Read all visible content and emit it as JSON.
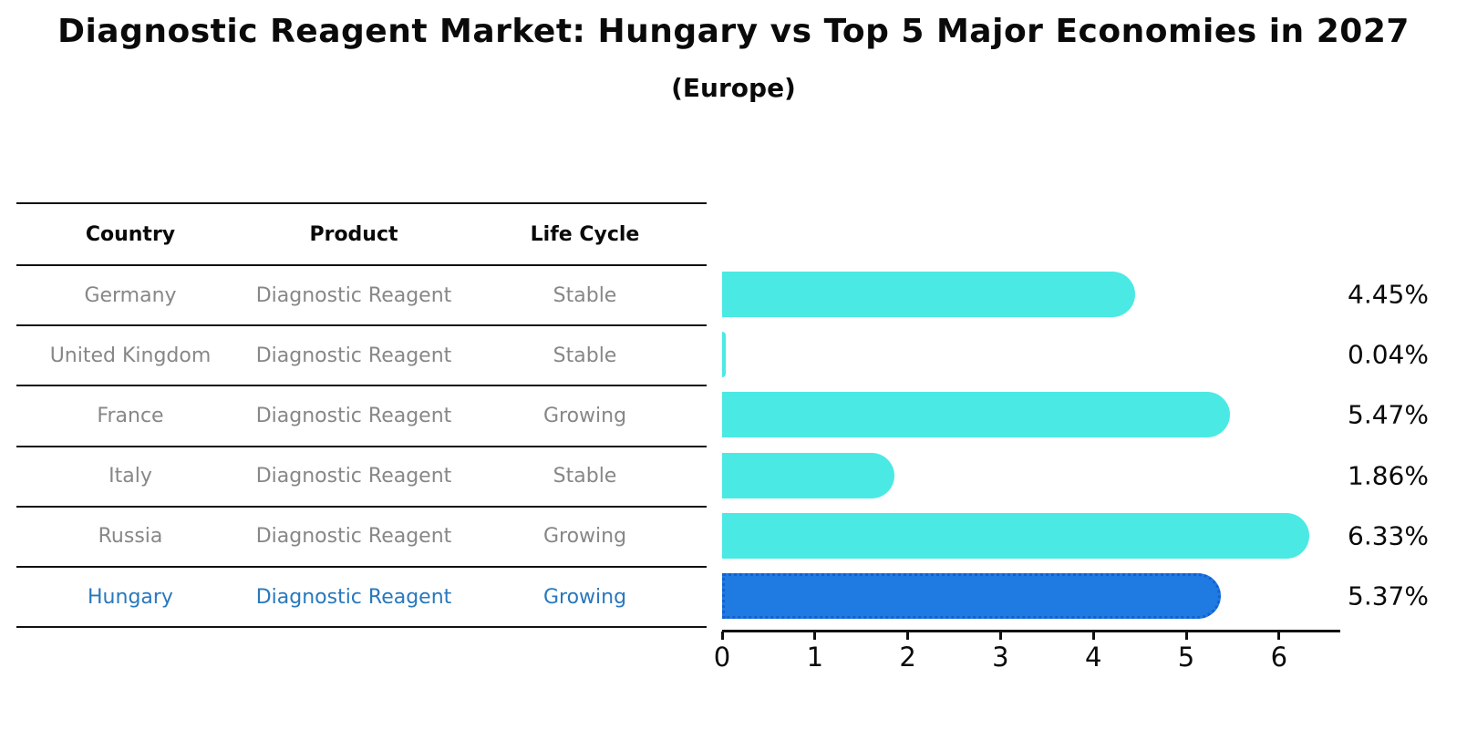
{
  "title": "Diagnostic Reagent Market: Hungary vs Top 5 Major Economies in 2027",
  "subtitle": "(Europe)",
  "table": {
    "columns": [
      "Country",
      "Product",
      "Life Cycle"
    ],
    "rows": [
      {
        "country": "Germany",
        "product": "Diagnostic Reagent",
        "life_cycle": "Stable",
        "highlight": false
      },
      {
        "country": "United Kingdom",
        "product": "Diagnostic Reagent",
        "life_cycle": "Stable",
        "highlight": false
      },
      {
        "country": "France",
        "product": "Diagnostic Reagent",
        "life_cycle": "Growing",
        "highlight": false
      },
      {
        "country": "Italy",
        "product": "Diagnostic Reagent",
        "life_cycle": "Stable",
        "highlight": false
      },
      {
        "country": "Russia",
        "product": "Diagnostic Reagent",
        "life_cycle": "Growing",
        "highlight": false
      },
      {
        "country": "Hungary",
        "product": "Diagnostic Reagent",
        "life_cycle": "Growing",
        "highlight": true
      }
    ]
  },
  "chart_data": {
    "type": "bar",
    "orientation": "horizontal",
    "title": "Diagnostic Reagent Market: Hungary vs Top 5 Major Economies in 2027 (Europe)",
    "categories": [
      "Germany",
      "United Kingdom",
      "France",
      "Italy",
      "Russia",
      "Hungary"
    ],
    "values": [
      4.45,
      0.04,
      5.47,
      1.86,
      6.33,
      5.37
    ],
    "value_labels": [
      "4.45%",
      "0.04%",
      "5.47%",
      "1.86%",
      "6.33%",
      "5.37%"
    ],
    "x_ticks": [
      0,
      1,
      2,
      3,
      4,
      5,
      6
    ],
    "xlim": [
      0,
      6.66
    ],
    "xlabel": "",
    "ylabel": "",
    "grid": false,
    "legend": false,
    "highlight_category": "Hungary",
    "bar_color": "#4be9e4",
    "highlight_color": "#1f7ae1",
    "highlight_border_color": "#1261d2"
  },
  "colors": {
    "accent_text": "#2878be",
    "row_text": "#878787",
    "heading_text": "#0a0a0a"
  }
}
